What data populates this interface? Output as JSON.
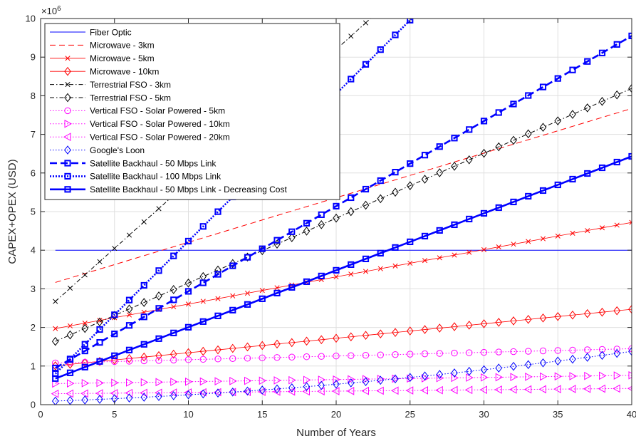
{
  "chart_data": {
    "type": "line",
    "xlabel": "Number of Years",
    "ylabel": "CAPEX+OPEX (USD)",
    "exponent_label": "×10",
    "exponent_power": "6",
    "xlim": [
      0,
      40
    ],
    "ylim": [
      0,
      10
    ],
    "xticks": [
      "0",
      "5",
      "10",
      "15",
      "20",
      "25",
      "30",
      "35",
      "40"
    ],
    "yticks": [
      "0",
      "1",
      "2",
      "3",
      "4",
      "5",
      "6",
      "7",
      "8",
      "9",
      "10"
    ],
    "grid": true,
    "legend_position": "top-left",
    "y_unit_scale": 1000000,
    "series": [
      {
        "name": "Fiber Optic",
        "color": "#0000ff",
        "dash": "solid",
        "width": 1,
        "marker": "none",
        "formula": {
          "kind": "linear",
          "a": 4.0,
          "b": 0
        }
      },
      {
        "name": "Microwave - 3km",
        "color": "#ff0000",
        "dash": "8,5",
        "width": 1,
        "marker": "none",
        "formula": {
          "kind": "linear",
          "a": 3.05,
          "b": 0.1155
        }
      },
      {
        "name": "Microwave - 5km",
        "color": "#ff0000",
        "dash": "solid",
        "width": 0.8,
        "marker": "x",
        "formula": {
          "kind": "linear",
          "a": 1.9,
          "b": 0.0705
        }
      },
      {
        "name": "Microwave - 10km",
        "color": "#ff0000",
        "dash": "solid",
        "width": 0.8,
        "marker": "diamond",
        "formula": {
          "kind": "linear",
          "a": 0.97,
          "b": 0.0375
        }
      },
      {
        "name": "Terrestrial FSO - 3km",
        "color": "#000000",
        "dash": "6,3,1.5,3",
        "width": 1,
        "marker": "x",
        "formula": {
          "kind": "linear",
          "a": 2.33,
          "b": 0.3435
        }
      },
      {
        "name": "Terrestrial FSO - 5km",
        "color": "#000000",
        "dash": "6,3,1.5,3",
        "width": 1,
        "marker": "diamond",
        "formula": {
          "kind": "linear",
          "a": 1.47,
          "b": 0.168
        }
      },
      {
        "name": "Vertical FSO - Solar Powered - 5km",
        "color": "#ff00ff",
        "dash": "1.5,2.5",
        "width": 1,
        "marker": "circle",
        "formula": {
          "kind": "linear",
          "a": 1.07,
          "b": 0.0095
        }
      },
      {
        "name": "Vertical FSO - Solar Powered - 10km",
        "color": "#ff00ff",
        "dash": "1.5,2.5",
        "width": 1,
        "marker": "triangle-right",
        "formula": {
          "kind": "linear",
          "a": 0.54,
          "b": 0.0055
        }
      },
      {
        "name": "Vertical FSO - Solar Powered - 20km",
        "color": "#ff00ff",
        "dash": "1.5,2.5",
        "width": 1,
        "marker": "triangle-left",
        "formula": {
          "kind": "linear",
          "a": 0.28,
          "b": 0.0035
        }
      },
      {
        "name": "Google's Loon",
        "color": "#0000ff",
        "dash": "1.5,2.5",
        "width": 1,
        "marker": "diamond",
        "formula": {
          "kind": "loon",
          "a": 0.08,
          "b": 0.0125,
          "c": 0.0005
        }
      },
      {
        "name": "Satellite Backhaul  - 50 Mbps Link",
        "color": "#0000ff",
        "dash": "10,5",
        "width": 2.6,
        "marker": "square",
        "formula": {
          "kind": "linear",
          "a": 0.73,
          "b": 0.2205
        }
      },
      {
        "name": "Satellite Backhaul  - 100 Mbps Link",
        "color": "#0000ff",
        "dash": "2,2",
        "width": 2.6,
        "marker": "square",
        "formula": {
          "kind": "linear",
          "a": 0.42,
          "b": 0.3815
        }
      },
      {
        "name": "Satellite Backhaul - 50 Mbps Link - Decreasing Cost",
        "color": "#0000ff",
        "dash": "solid",
        "width": 2.6,
        "marker": "square",
        "formula": {
          "kind": "linear",
          "a": 0.53,
          "b": 0.1475
        }
      }
    ]
  }
}
